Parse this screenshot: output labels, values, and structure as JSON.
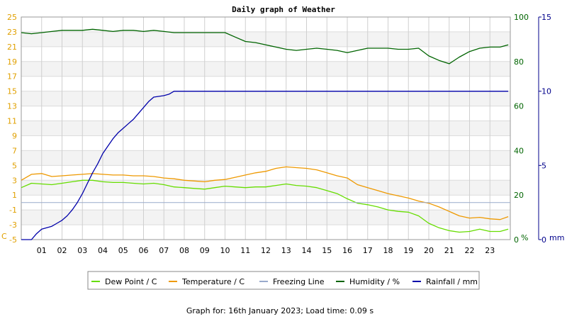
{
  "chart_data": {
    "type": "line",
    "title": "Daily graph of Weather",
    "x_ticks": [
      "01",
      "02",
      "03",
      "04",
      "05",
      "06",
      "07",
      "08",
      "09",
      "10",
      "11",
      "12",
      "13",
      "14",
      "15",
      "16",
      "17",
      "18",
      "19",
      "20",
      "21",
      "22",
      "23"
    ],
    "xlim": [
      0,
      24
    ],
    "left_axis": {
      "unit_label": "C",
      "ylim": [
        -5,
        25
      ],
      "ticks": [
        -5,
        -3,
        -1,
        1,
        3,
        5,
        7,
        9,
        11,
        13,
        15,
        17,
        19,
        21,
        23,
        25
      ],
      "color": "#e0a000"
    },
    "mid_axis": {
      "unit_label": "%",
      "ylim": [
        0,
        100
      ],
      "ticks": [
        0,
        20,
        40,
        60,
        80,
        100
      ],
      "color": "#006400"
    },
    "right_axis": {
      "unit_label": "mm",
      "ylim": [
        0,
        15
      ],
      "ticks": [
        0,
        5,
        10,
        15
      ],
      "color": "#00008b"
    },
    "legend_placement": "bottom",
    "series": [
      {
        "name": "Dew Point / C",
        "axis": "left",
        "color": "#66dd00",
        "x": [
          0,
          0.5,
          1,
          1.5,
          2,
          2.5,
          3,
          3.5,
          4,
          4.5,
          5,
          5.5,
          6,
          6.5,
          7,
          7.5,
          8,
          8.5,
          9,
          9.5,
          10,
          10.5,
          11,
          11.5,
          12,
          12.5,
          13,
          13.5,
          14,
          14.5,
          15,
          15.5,
          16,
          16.5,
          17,
          17.5,
          18,
          18.5,
          19,
          19.5,
          20,
          20.5,
          21,
          21.5,
          22,
          22.5,
          23,
          23.5,
          23.9
        ],
        "y": [
          2.0,
          2.6,
          2.5,
          2.4,
          2.6,
          2.8,
          3.0,
          3.0,
          2.8,
          2.7,
          2.7,
          2.6,
          2.5,
          2.6,
          2.4,
          2.1,
          2.0,
          1.9,
          1.8,
          2.0,
          2.2,
          2.1,
          2.0,
          2.1,
          2.1,
          2.3,
          2.5,
          2.3,
          2.2,
          2.0,
          1.6,
          1.2,
          0.5,
          -0.1,
          -0.3,
          -0.6,
          -1.0,
          -1.2,
          -1.3,
          -1.8,
          -2.8,
          -3.4,
          -3.8,
          -4.0,
          -3.9,
          -3.6,
          -3.9,
          -3.9,
          -3.6
        ]
      },
      {
        "name": "Temperature / C",
        "axis": "left",
        "color": "#ee9900",
        "x": [
          0,
          0.5,
          1,
          1.5,
          2,
          2.5,
          3,
          3.5,
          4,
          4.5,
          5,
          5.5,
          6,
          6.5,
          7,
          7.5,
          8,
          8.5,
          9,
          9.5,
          10,
          10.5,
          11,
          11.5,
          12,
          12.5,
          13,
          13.5,
          14,
          14.5,
          15,
          15.5,
          16,
          16.5,
          17,
          17.5,
          18,
          18.5,
          19,
          19.5,
          20,
          20.5,
          21,
          21.5,
          22,
          22.5,
          23,
          23.5,
          23.9
        ],
        "y": [
          3.0,
          3.8,
          3.9,
          3.5,
          3.6,
          3.7,
          3.8,
          3.9,
          3.8,
          3.7,
          3.7,
          3.6,
          3.6,
          3.5,
          3.3,
          3.2,
          3.0,
          2.9,
          2.8,
          3.0,
          3.1,
          3.4,
          3.7,
          4.0,
          4.2,
          4.6,
          4.8,
          4.7,
          4.6,
          4.4,
          4.0,
          3.6,
          3.3,
          2.4,
          2.0,
          1.6,
          1.2,
          0.9,
          0.6,
          0.2,
          -0.1,
          -0.6,
          -1.2,
          -1.8,
          -2.1,
          -2.0,
          -2.2,
          -2.3,
          -1.9
        ]
      },
      {
        "name": "Freezing Line",
        "axis": "left",
        "color": "#99aacc",
        "x": [
          0,
          24
        ],
        "y": [
          0,
          0
        ]
      },
      {
        "name": "Humidity / %",
        "axis": "mid",
        "color": "#006400",
        "x": [
          0,
          0.5,
          1,
          1.5,
          2,
          2.5,
          3,
          3.5,
          4,
          4.5,
          5,
          5.5,
          6,
          6.5,
          7,
          7.5,
          8,
          8.5,
          9,
          9.5,
          10,
          10.5,
          11,
          11.5,
          12,
          12.5,
          13,
          13.5,
          14,
          14.5,
          15,
          15.5,
          16,
          16.5,
          17,
          17.5,
          18,
          18.5,
          19,
          19.5,
          20,
          20.5,
          21,
          21.5,
          22,
          22.5,
          23,
          23.5,
          23.9
        ],
        "y": [
          93,
          92.5,
          93,
          93.5,
          94,
          94,
          94,
          94.5,
          94,
          93.5,
          94,
          94,
          93.5,
          94,
          93.5,
          93,
          93,
          93,
          93,
          93,
          93,
          91,
          89,
          88.5,
          87.5,
          86.5,
          85.5,
          85,
          85.5,
          86,
          85.5,
          85,
          84,
          85,
          86,
          86,
          86,
          85.5,
          85.5,
          86,
          82.5,
          80.5,
          79,
          82,
          84.5,
          86,
          86.5,
          86.5,
          87.5
        ]
      },
      {
        "name": "Rainfall / mm",
        "axis": "right",
        "color": "#0000aa",
        "x": [
          0,
          0.5,
          0.75,
          1,
          1.25,
          1.5,
          1.75,
          2,
          2.25,
          2.5,
          2.75,
          3,
          3.25,
          3.5,
          3.75,
          4,
          4.25,
          4.5,
          4.75,
          5,
          5.25,
          5.5,
          5.75,
          6,
          6.25,
          6.5,
          7,
          7.25,
          7.5,
          8,
          10,
          12,
          14,
          16,
          18,
          20,
          22,
          23.9
        ],
        "y": [
          0,
          0,
          0.4,
          0.7,
          0.8,
          0.9,
          1.1,
          1.3,
          1.6,
          2.0,
          2.5,
          3.1,
          3.8,
          4.5,
          5.1,
          5.8,
          6.3,
          6.8,
          7.2,
          7.5,
          7.8,
          8.1,
          8.5,
          8.9,
          9.3,
          9.6,
          9.7,
          9.8,
          10.0,
          10.0,
          10.0,
          10.0,
          10.0,
          10.0,
          10.0,
          10.0,
          10.0,
          10.0
        ]
      }
    ]
  },
  "footer": "Graph for: 16th January 2023; Load time: 0.09 s"
}
